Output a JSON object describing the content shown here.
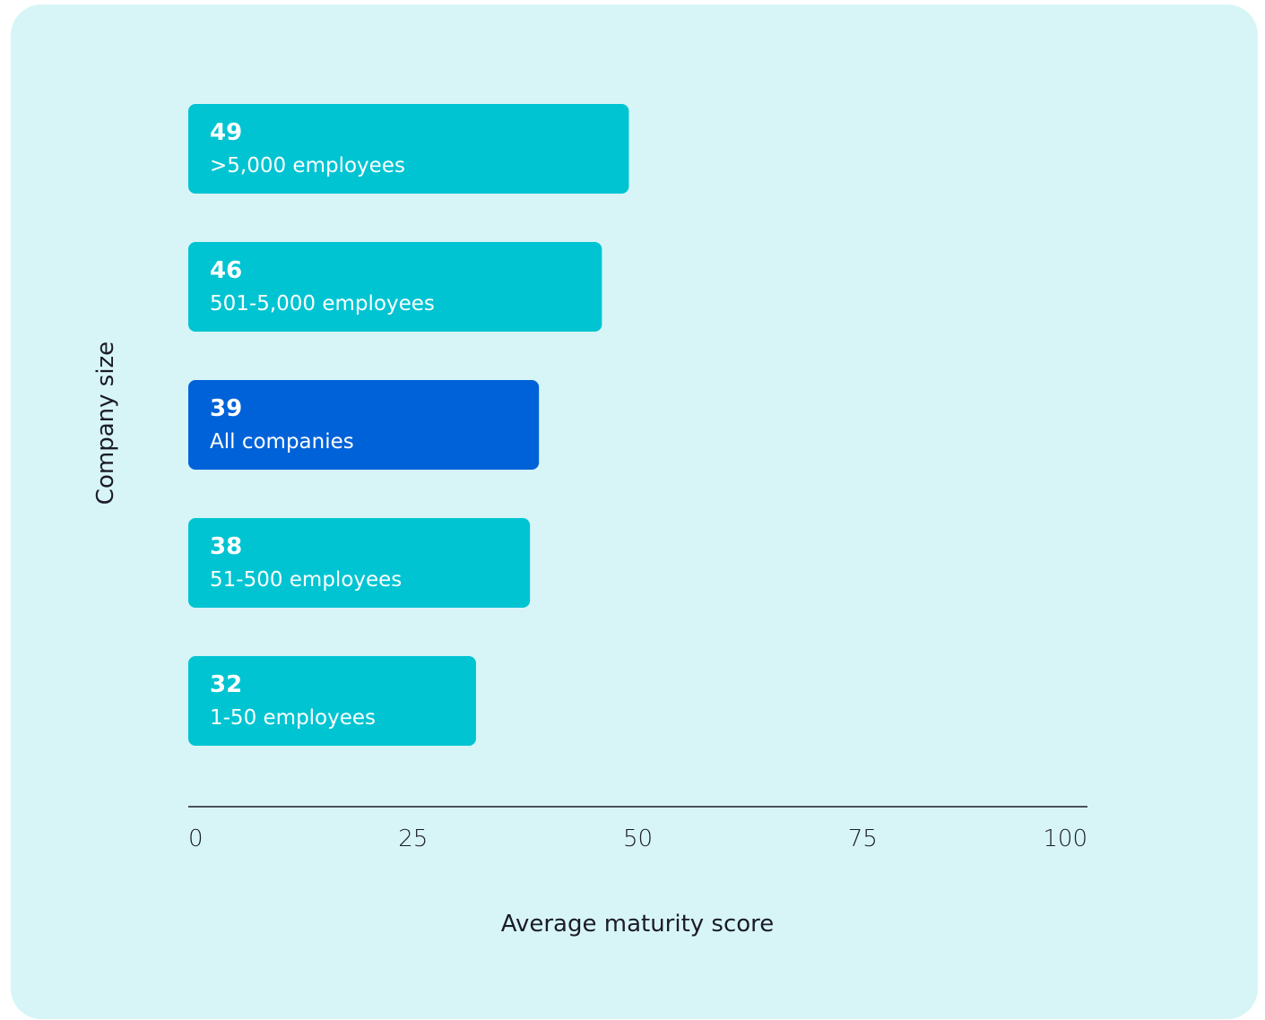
{
  "chart_data": {
    "type": "bar",
    "orientation": "horizontal",
    "categories": [
      ">5,000 employees",
      "501-5,000 employees",
      "All companies",
      "51-500 employees",
      "1-50 employees"
    ],
    "values": [
      49,
      46,
      39,
      38,
      32
    ],
    "value_labels": [
      "49",
      "46",
      "39",
      "38",
      "32"
    ],
    "highlight": "All companies",
    "xlabel": "Average maturity score",
    "ylabel": "Company size",
    "xlim": [
      0,
      100
    ],
    "xticks": [
      0,
      25,
      50,
      75,
      100
    ],
    "xtick_labels": [
      "0",
      "25",
      "50",
      "75",
      "100"
    ],
    "grid": false
  },
  "colors": {
    "background": "#d7f5f7",
    "bar": "#00c4d2",
    "bar_highlight": "#0062d8",
    "axis": "#1b1b2a"
  }
}
